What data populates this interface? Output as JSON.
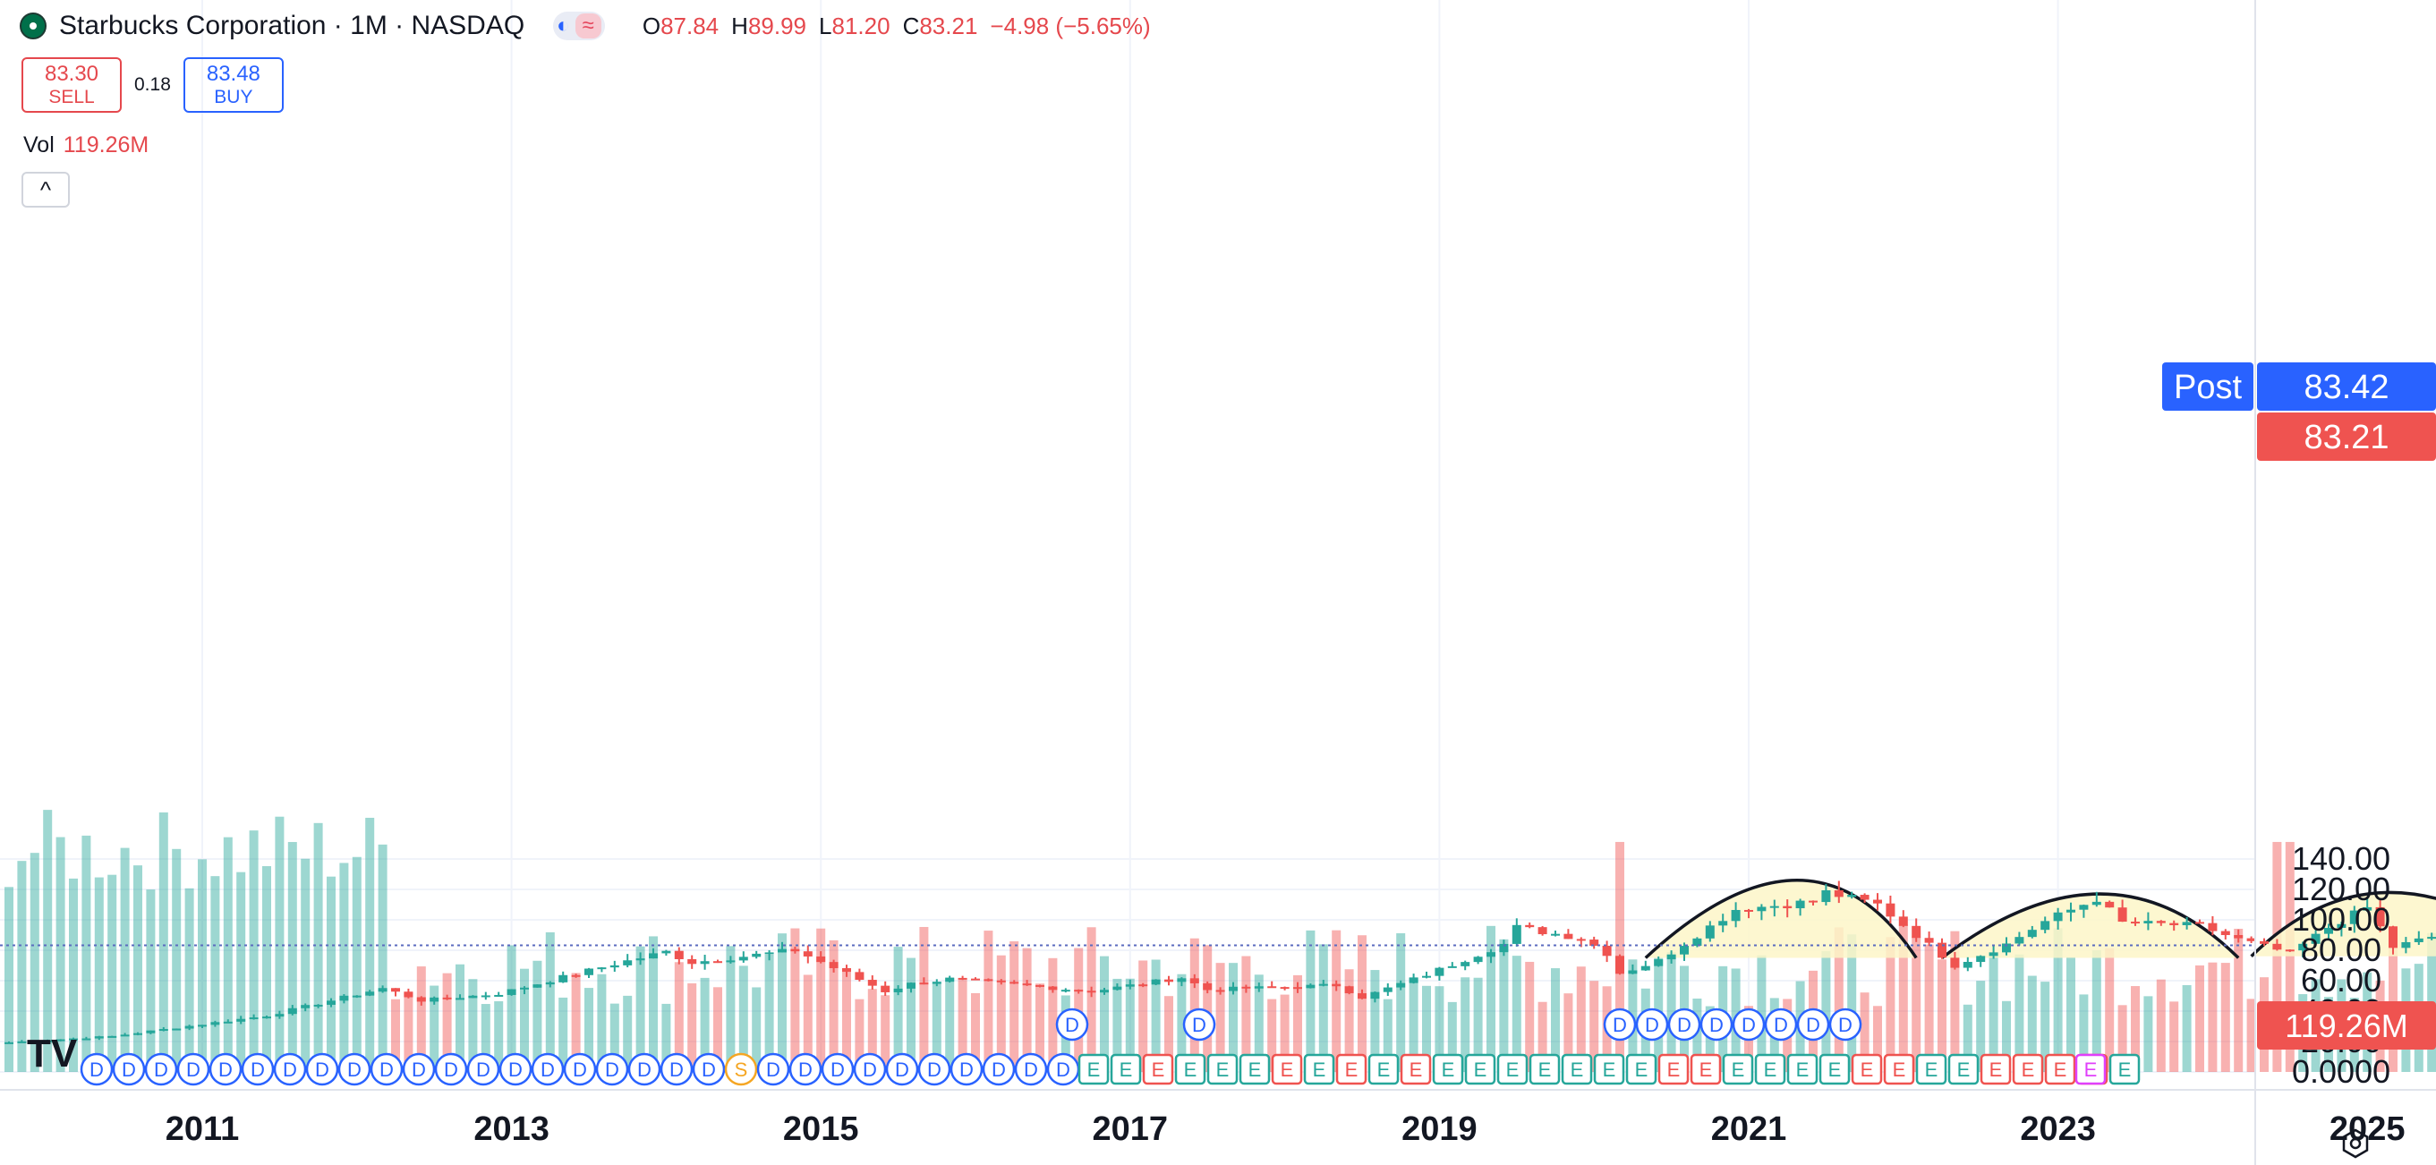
{
  "header": {
    "title": "Starbucks Corporation · 1M · NASDAQ",
    "mode_icon": "moon-icon",
    "wave_icon": "≈",
    "ohlc": [
      {
        "k": "O",
        "v": "87.84"
      },
      {
        "k": "H",
        "v": "89.99"
      },
      {
        "k": "L",
        "v": "81.20"
      },
      {
        "k": "C",
        "v": "83.21"
      }
    ],
    "change": "−4.98 (−5.65%)"
  },
  "trade": {
    "sell_price": "83.30",
    "sell_label": "SELL",
    "spread": "0.18",
    "buy_price": "83.48",
    "buy_label": "BUY"
  },
  "volume_legend": {
    "label": "Vol",
    "value": "119.26M"
  },
  "collapse_icon": "^",
  "price_labels": {
    "post_label": "Post",
    "post_price": "83.42",
    "last_price": "83.21",
    "volume_value": "119.26M"
  },
  "colors": {
    "up": "#26a69a",
    "down": "#ef5350",
    "accent": "#2962ff",
    "pattern_fill": "#fdf6c8"
  },
  "chart_data": {
    "type": "candlestick",
    "interval": "1M",
    "y_axis": {
      "ticks": [
        "0.0000",
        "20.00",
        "40.00",
        "60.00",
        "80.00",
        "100.00",
        "120.00",
        "140.00"
      ],
      "ylim": [
        0,
        140
      ]
    },
    "x_axis": {
      "ticks": [
        "2011",
        "2013",
        "2015",
        "2017",
        "2019",
        "2021",
        "2023",
        "2025",
        "20"
      ]
    },
    "last_close": 83.21,
    "post_market": 83.42,
    "anchors": [
      [
        "2009-10",
        19.5
      ],
      [
        "2010-06",
        23.5
      ],
      [
        "2011-06",
        37
      ],
      [
        "2012-03",
        55
      ],
      [
        "2012-06",
        47
      ],
      [
        "2012-12",
        51.5
      ],
      [
        "2013-09",
        71
      ],
      [
        "2014-01",
        79
      ],
      [
        "2014-03",
        72
      ],
      [
        "2014-11",
        80
      ],
      [
        "2015-06",
        53
      ],
      [
        "2015-08",
        58
      ],
      [
        "2015-11",
        61
      ],
      [
        "2016-06",
        56
      ],
      [
        "2016-10",
        53
      ],
      [
        "2017-05",
        62
      ],
      [
        "2017-07",
        54
      ],
      [
        "2017-10",
        55
      ],
      [
        "2018-05",
        57
      ],
      [
        "2018-07",
        49
      ],
      [
        "2018-12",
        64
      ],
      [
        "2019-06",
        84
      ],
      [
        "2019-07",
        95
      ],
      [
        "2019-12",
        88
      ],
      [
        "2020-02",
        78
      ],
      [
        "2020-03",
        65
      ],
      [
        "2020-06",
        73
      ],
      [
        "2020-12",
        107
      ],
      [
        "2021-06",
        112
      ],
      [
        "2021-07",
        118
      ],
      [
        "2021-11",
        110
      ],
      [
        "2022-05",
        70
      ],
      [
        "2022-09",
        84
      ],
      [
        "2022-12",
        99
      ],
      [
        "2023-04",
        114
      ],
      [
        "2023-06",
        98
      ],
      [
        "2023-12",
        96
      ],
      [
        "2024-03",
        87
      ],
      [
        "2024-07",
        78
      ],
      [
        "2024-10",
        95
      ],
      [
        "2025-01",
        108
      ],
      [
        "2025-03",
        82
      ],
      [
        "2025-07",
        91
      ],
      [
        "2025-09",
        83.21
      ]
    ],
    "volume_ylim": [
      0,
      45
    ],
    "series": [
      {
        "name": "Vol",
        "values_note": "monthly volume"
      }
    ],
    "events": {
      "dividends_label": "D",
      "earnings_label": "E",
      "split_label": "S"
    },
    "annotations": [
      {
        "type": "arc",
        "start": [
          "2020-05",
          75
        ],
        "peak": [
          "2021-06",
          126
        ],
        "end": [
          "2022-02",
          75
        ]
      },
      {
        "type": "arc",
        "start": [
          "2022-04",
          75
        ],
        "peak": [
          "2023-05",
          117
        ],
        "end": [
          "2024-03",
          75
        ]
      },
      {
        "type": "arc",
        "start": [
          "2024-04",
          76
        ],
        "peak": [
          "2025-02",
          118
        ],
        "end": [
          "2026-03",
          76
        ]
      }
    ]
  }
}
